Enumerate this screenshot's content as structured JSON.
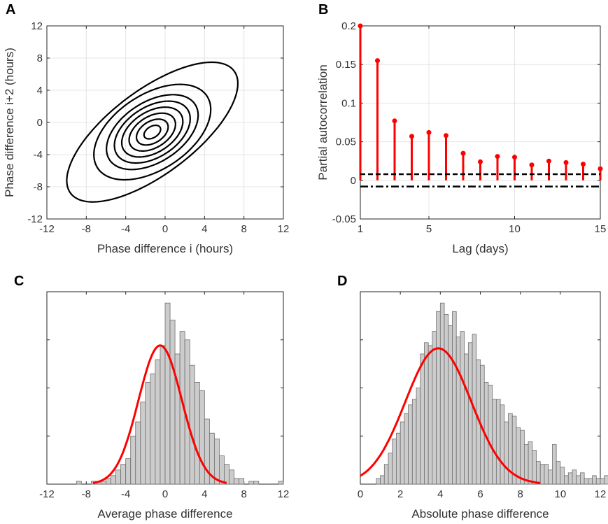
{
  "chart_data": [
    {
      "panel": "A",
      "type": "contour",
      "xlabel": "Phase difference i (hours)",
      "ylabel": "Phase difference i+2 (hours)",
      "xlim": [
        -12,
        12
      ],
      "ylim": [
        -12,
        12
      ],
      "xticks": [
        -12,
        -8,
        -4,
        0,
        4,
        8,
        12
      ],
      "yticks": [
        -12,
        -8,
        -4,
        0,
        4,
        8,
        12
      ],
      "grid": true,
      "center": [
        -1.3,
        -1.2
      ],
      "levels": [
        {
          "semi_major": 1.0,
          "semi_minor": 0.65
        },
        {
          "semi_major": 1.9,
          "semi_minor": 1.25
        },
        {
          "semi_major": 2.8,
          "semi_minor": 1.8
        },
        {
          "semi_major": 3.7,
          "semi_minor": 2.35
        },
        {
          "semi_major": 4.6,
          "semi_minor": 2.9
        },
        {
          "semi_major": 5.6,
          "semi_minor": 3.45
        },
        {
          "semi_major": 7.2,
          "semi_minor": 4.3
        },
        {
          "semi_major": 11.3,
          "semi_minor": 4.8
        }
      ],
      "color": "#000000"
    },
    {
      "panel": "B",
      "type": "stem",
      "xlabel": "Lag (days)",
      "ylabel": "Partial autocorrelation",
      "xlim": [
        1,
        15
      ],
      "ylim": [
        -0.05,
        0.2
      ],
      "xticks": [
        1,
        5,
        10,
        15
      ],
      "yticks": [
        -0.05,
        0,
        0.05,
        0.1,
        0.15,
        0.2
      ],
      "grid": true,
      "x": [
        1,
        2,
        3,
        4,
        5,
        6,
        7,
        8,
        9,
        10,
        11,
        12,
        13,
        14,
        15
      ],
      "y": [
        0.2,
        0.155,
        0.077,
        0.057,
        0.062,
        0.058,
        0.035,
        0.024,
        0.031,
        0.03,
        0.02,
        0.025,
        0.023,
        0.021,
        0.015
      ],
      "upper_bound": 0.008,
      "lower_bound": -0.008,
      "color": "#ff0000"
    },
    {
      "panel": "C",
      "type": "histogram",
      "xlabel": "Average phase difference",
      "xlim": [
        -12,
        12
      ],
      "xticks": [
        -12,
        -8,
        -4,
        0,
        4,
        8,
        12
      ],
      "bin_width": 0.5,
      "bin_start": -9,
      "counts": [
        1,
        0,
        0,
        1,
        1,
        1,
        2,
        3,
        5,
        7,
        9,
        17,
        22,
        29,
        36,
        39,
        44,
        49,
        64,
        58,
        46,
        54,
        51,
        42,
        36,
        33,
        23,
        18,
        16,
        10,
        7,
        5,
        2,
        2,
        0,
        1,
        1,
        0,
        0,
        0,
        0,
        1
      ],
      "fit": {
        "type": "normal",
        "mean": -0.5,
        "sd": 2.2,
        "peak": 49
      },
      "bar_color": "#cccccc",
      "fit_color": "#ff0000"
    },
    {
      "panel": "D",
      "type": "histogram",
      "xlabel": "Absolute phase difference",
      "xlim": [
        0,
        12
      ],
      "xticks": [
        0,
        2,
        4,
        6,
        8,
        10,
        12
      ],
      "bin_width": 0.2,
      "bin_start": 0.8,
      "counts": [
        2,
        3,
        7,
        11,
        16,
        18,
        22,
        25,
        28,
        30,
        34,
        46,
        50,
        49,
        54,
        61,
        64,
        60,
        56,
        61,
        52,
        54,
        46,
        50,
        53,
        44,
        42,
        36,
        35,
        30,
        30,
        28,
        22,
        25,
        24,
        20,
        19,
        14,
        15,
        12,
        8,
        7,
        7,
        5,
        14,
        8,
        6,
        3,
        4,
        5,
        3,
        4,
        2,
        2,
        3,
        2,
        2,
        3,
        2,
        1
      ],
      "fit": {
        "type": "normal",
        "mean": 3.9,
        "sd": 1.65,
        "peak": 48
      },
      "bar_color": "#cccccc",
      "fit_color": "#ff0000"
    }
  ]
}
